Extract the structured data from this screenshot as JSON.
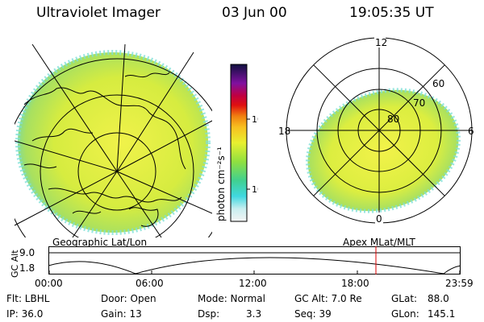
{
  "header": {
    "title": "Ultraviolet Imager",
    "date": "03 Jun 00",
    "time": "19:05:35 UT"
  },
  "left_panel": {
    "caption": "Geographic Lat/Lon"
  },
  "right_panel": {
    "caption": "Apex MLat/MLT",
    "mlt_labels": {
      "top": "12",
      "right": "6",
      "bottom": "0",
      "left": "18"
    },
    "lat_labels": [
      "60",
      "70",
      "80"
    ]
  },
  "colorbar": {
    "unit_label": "photon cm⁻²s⁻¹",
    "ticks": [
      "100",
      "10"
    ]
  },
  "altitude_plot": {
    "ylabel": "GC Alt",
    "yticks": [
      "9.0",
      "1.8"
    ],
    "xticks": [
      "00:00",
      "06:00",
      "12:00",
      "18:00",
      "23:59"
    ],
    "current_time_color": "#dd0000"
  },
  "footer": {
    "row1": {
      "flt": "Flt: LBHL",
      "door": "Door: Open",
      "mode": "Mode: Normal",
      "gcalt": "GC Alt: 7.0 Re",
      "glat": "GLat:",
      "glat_val": "88.0"
    },
    "row2": {
      "ip": "IP: 36.0",
      "gain": "Gain: 13",
      "dsp": "Dsp:",
      "dsp_val": "3.3",
      "seq": "Seq: 39",
      "glon": "GLon:",
      "glon_val": "145.1"
    }
  }
}
